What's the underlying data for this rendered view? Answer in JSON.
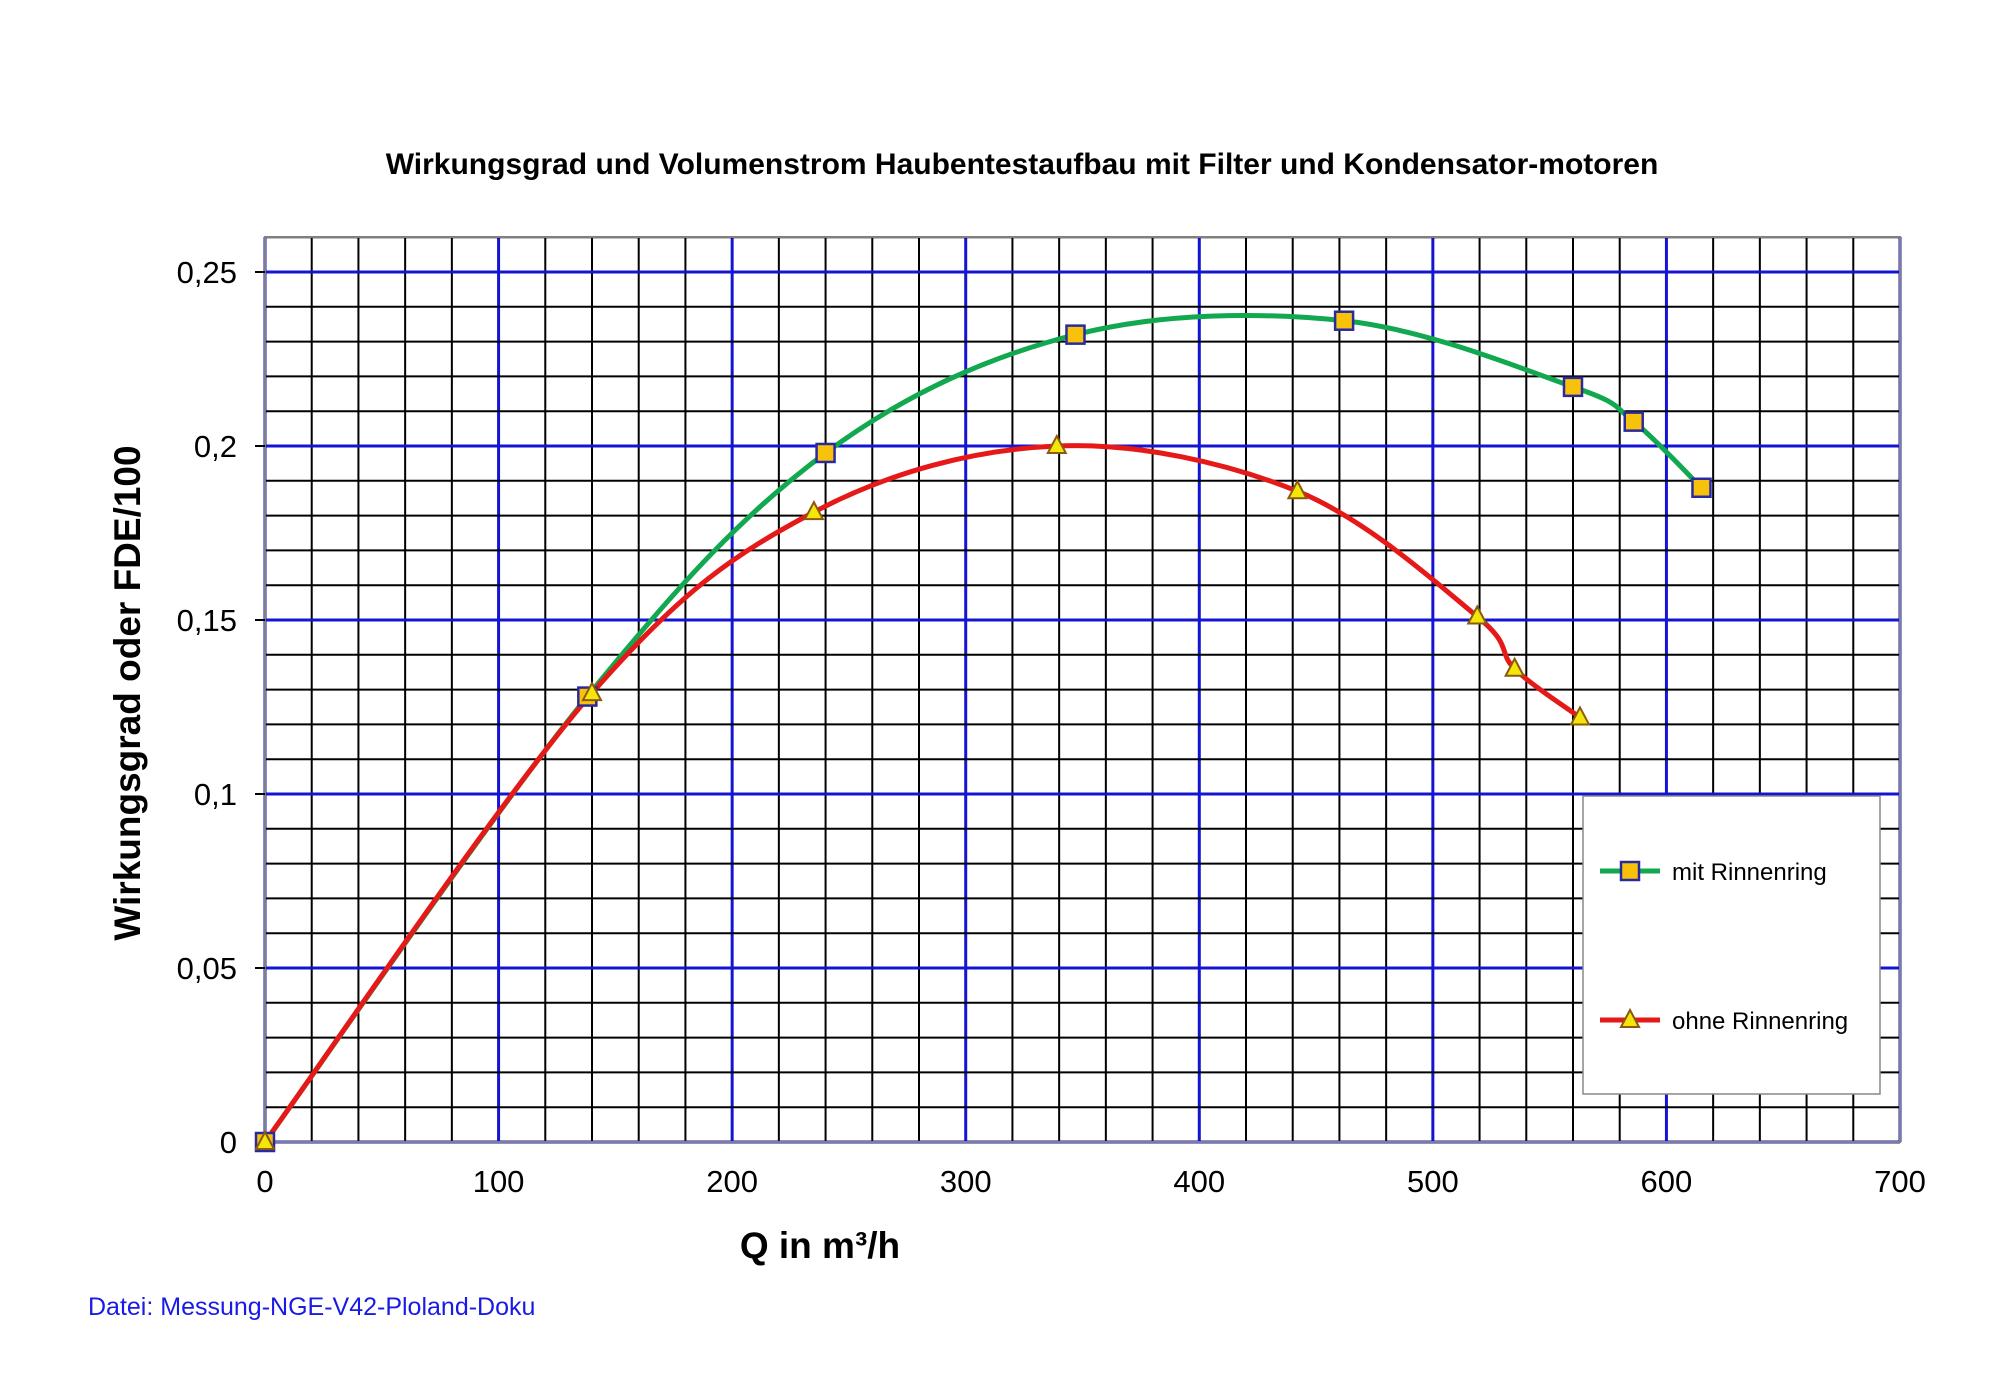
{
  "chart_data": {
    "type": "line",
    "title": "Wirkungsgrad   und Volumenstrom  Haubentestaufbau mit Filter und Kondensator-motoren",
    "xlabel": "Q in m³/h",
    "ylabel": "Wirkungsgrad oder FDE/100",
    "xlim": [
      0,
      700
    ],
    "ylim": [
      0,
      0.26
    ],
    "x_ticks": [
      0,
      100,
      200,
      300,
      400,
      500,
      600,
      700
    ],
    "x_tick_labels": [
      "0",
      "100",
      "200",
      "300",
      "400",
      "500",
      "600",
      "700"
    ],
    "y_ticks": [
      0,
      0.05,
      0.1,
      0.15,
      0.2,
      0.25
    ],
    "y_tick_labels": [
      "0",
      "0,05",
      "0,1",
      "0,15",
      "0,2",
      "0,25"
    ],
    "grid": true,
    "legend_position": "bottom-right",
    "series": [
      {
        "name": "mit Rinnenring",
        "color": "#12a84f",
        "marker": "square",
        "marker_fill": "#f9c20a",
        "marker_edge": "#2a2aa0",
        "x": [
          0,
          138,
          240,
          347,
          462,
          560,
          586,
          615
        ],
        "y": [
          0,
          0.128,
          0.198,
          0.232,
          0.236,
          0.217,
          0.207,
          0.188
        ]
      },
      {
        "name": "ohne Rinnenring",
        "color": "#e61919",
        "marker": "triangle",
        "marker_fill": "#f5e60a",
        "marker_edge": "#8a5a10",
        "x": [
          0,
          140,
          235,
          339,
          442,
          519,
          535,
          563
        ],
        "y": [
          0,
          0.129,
          0.181,
          0.2,
          0.187,
          0.151,
          0.136,
          0.122
        ]
      }
    ]
  },
  "footer": {
    "file_note": "Datei: Messung-NGE-V42-Ploland-Doku"
  }
}
